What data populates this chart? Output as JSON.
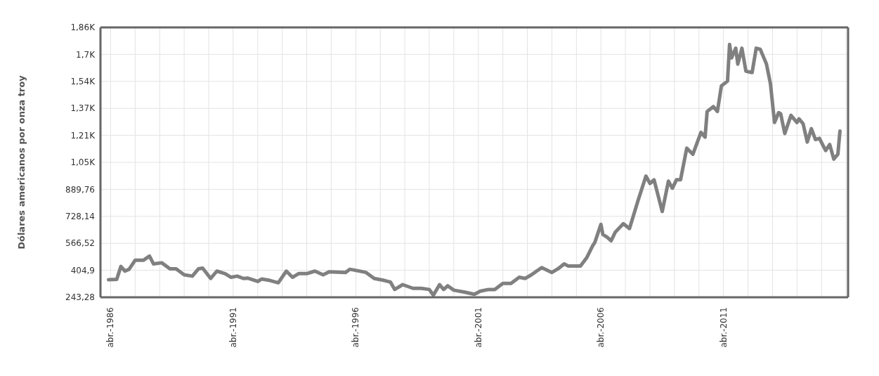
{
  "chart_data": {
    "type": "line",
    "ylabel": "Dólares americanos por onza troy",
    "x": [
      "1986-03",
      "1986-07",
      "1986-09",
      "1986-11",
      "1987-01",
      "1987-04",
      "1987-08",
      "1987-11",
      "1988-01",
      "1988-05",
      "1988-09",
      "1988-12",
      "1989-04",
      "1989-08",
      "1989-11",
      "1990-01",
      "1990-05",
      "1990-08",
      "1990-12",
      "1991-03",
      "1991-06",
      "1991-09",
      "1991-11",
      "1992-04",
      "1992-06",
      "1992-10",
      "1993-02",
      "1993-06",
      "1993-09",
      "1993-12",
      "1994-04",
      "1994-08",
      "1994-12",
      "1995-03",
      "1995-11",
      "1996-01",
      "1996-03",
      "1996-09",
      "1997-01",
      "1997-06",
      "1997-09",
      "1997-11",
      "1998-03",
      "1998-08",
      "1998-12",
      "1999-04",
      "1999-06",
      "1999-09",
      "1999-11",
      "2000-01",
      "2000-04",
      "2000-09",
      "2001-02",
      "2001-05",
      "2001-09",
      "2001-12",
      "2002-04",
      "2002-08",
      "2002-12",
      "2003-03",
      "2003-06",
      "2003-11",
      "2004-04",
      "2004-07",
      "2004-10",
      "2004-12",
      "2005-06",
      "2005-09",
      "2005-12",
      "2006-01",
      "2006-04",
      "2006-05",
      "2006-07",
      "2006-09",
      "2006-11",
      "2007-03",
      "2007-06",
      "2007-10",
      "2008-02",
      "2008-04",
      "2008-06",
      "2008-10",
      "2009-01",
      "2009-03",
      "2009-05",
      "2009-07",
      "2009-10",
      "2010-01",
      "2010-05",
      "2010-07",
      "2010-08",
      "2010-11",
      "2011-01",
      "2011-03",
      "2011-06",
      "2011-07",
      "2011-08",
      "2011-10",
      "2011-11",
      "2012-01",
      "2012-03",
      "2012-06",
      "2012-08",
      "2012-10",
      "2013-01",
      "2013-03",
      "2013-05",
      "2013-07",
      "2013-08",
      "2013-10",
      "2014-01",
      "2014-04",
      "2014-05",
      "2014-07",
      "2014-09",
      "2014-11",
      "2015-01",
      "2015-03",
      "2015-06",
      "2015-08",
      "2015-10",
      "2015-12",
      "2016-01"
    ],
    "series": [
      {
        "color": "#808080",
        "values": [
          348,
          351,
          428,
          400,
          411,
          465,
          465,
          490,
          443,
          450,
          414,
          414,
          378,
          370,
          414,
          418,
          356,
          400,
          385,
          363,
          370,
          356,
          358,
          338,
          353,
          344,
          330,
          400,
          363,
          385,
          385,
          400,
          378,
          396,
          392,
          411,
          407,
          392,
          356,
          344,
          334,
          290,
          319,
          297,
          297,
          290,
          256,
          319,
          290,
          312,
          286,
          275,
          261,
          280,
          290,
          290,
          326,
          326,
          363,
          356,
          378,
          421,
          392,
          414,
          443,
          431,
          431,
          480,
          553,
          572,
          680,
          619,
          604,
          582,
          633,
          684,
          655,
          816,
          969,
          925,
          947,
          757,
          939,
          896,
          947,
          947,
          1136,
          1100,
          1231,
          1202,
          1356,
          1385,
          1356,
          1509,
          1538,
          1757,
          1677,
          1735,
          1640,
          1735,
          1597,
          1589,
          1735,
          1728,
          1640,
          1523,
          1290,
          1349,
          1342,
          1224,
          1333,
          1290,
          1312,
          1282,
          1173,
          1253,
          1188,
          1195,
          1122,
          1158,
          1071,
          1100,
          1239
        ]
      }
    ],
    "xlim": [
      "1985-11",
      "2016-05"
    ],
    "xticks": [
      {
        "value": "1986-04",
        "label": "abr.-1986"
      },
      {
        "value": "1987-04",
        "label": null
      },
      {
        "value": "1988-04",
        "label": null
      },
      {
        "value": "1989-04",
        "label": null
      },
      {
        "value": "1990-04",
        "label": null
      },
      {
        "value": "1991-04",
        "label": "abr.-1991"
      },
      {
        "value": "1992-04",
        "label": null
      },
      {
        "value": "1993-04",
        "label": null
      },
      {
        "value": "1994-04",
        "label": null
      },
      {
        "value": "1995-04",
        "label": null
      },
      {
        "value": "1996-04",
        "label": "abr.-1996"
      },
      {
        "value": "1997-04",
        "label": null
      },
      {
        "value": "1998-04",
        "label": null
      },
      {
        "value": "1999-04",
        "label": null
      },
      {
        "value": "2000-04",
        "label": null
      },
      {
        "value": "2001-04",
        "label": "abr.-2001"
      },
      {
        "value": "2002-04",
        "label": null
      },
      {
        "value": "2003-04",
        "label": null
      },
      {
        "value": "2004-04",
        "label": null
      },
      {
        "value": "2005-04",
        "label": null
      },
      {
        "value": "2006-04",
        "label": "abr.-2006"
      },
      {
        "value": "2007-04",
        "label": null
      },
      {
        "value": "2008-04",
        "label": null
      },
      {
        "value": "2009-04",
        "label": null
      },
      {
        "value": "2010-04",
        "label": null
      },
      {
        "value": "2011-04",
        "label": "abr.-2011"
      },
      {
        "value": "2012-04",
        "label": null
      },
      {
        "value": "2013-04",
        "label": null
      },
      {
        "value": "2014-04",
        "label": null
      },
      {
        "value": "2015-04",
        "label": null
      },
      {
        "value": "2016-04",
        "label": null
      }
    ],
    "ylim": [
      243.28,
      1859.48
    ],
    "yticks": [
      {
        "value": 243.28,
        "label": "243,28"
      },
      {
        "value": 404.9,
        "label": "404,9"
      },
      {
        "value": 566.52,
        "label": "566,52"
      },
      {
        "value": 728.14,
        "label": "728,14"
      },
      {
        "value": 889.76,
        "label": "889,76"
      },
      {
        "value": 1051.38,
        "label": "1,05K"
      },
      {
        "value": 1213,
        "label": "1,21K"
      },
      {
        "value": 1374.62,
        "label": "1,37K"
      },
      {
        "value": 1536.24,
        "label": "1,54K"
      },
      {
        "value": 1697.86,
        "label": "1,7K"
      },
      {
        "value": 1859.48,
        "label": "1,86K"
      }
    ],
    "grid": true,
    "legend": false,
    "marker": "none",
    "line_style": "solid"
  }
}
